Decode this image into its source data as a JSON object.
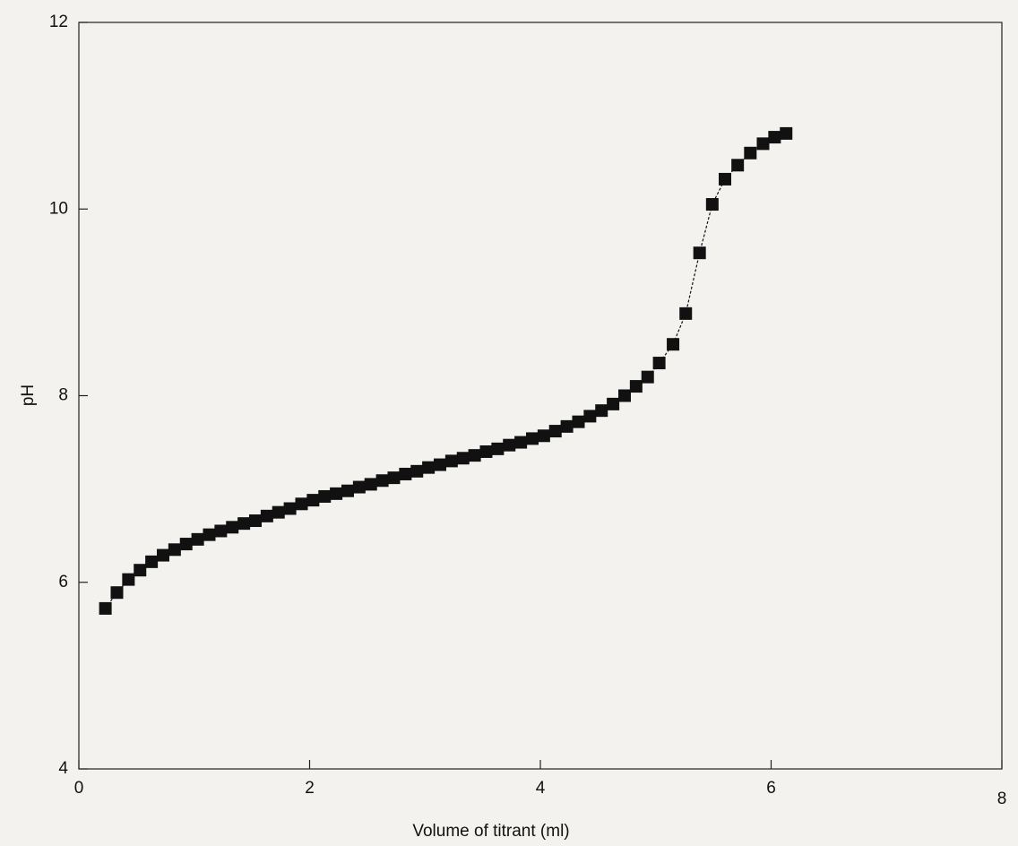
{
  "chart_data": {
    "type": "line",
    "marker": "square",
    "color": "#111111",
    "xlabel": "Volume of titrant (ml)",
    "ylabel": "pH",
    "x": [
      0.23,
      0.33,
      0.43,
      0.53,
      0.63,
      0.73,
      0.83,
      0.93,
      1.03,
      1.13,
      1.23,
      1.33,
      1.43,
      1.53,
      1.63,
      1.73,
      1.83,
      1.93,
      2.03,
      2.13,
      2.23,
      2.33,
      2.43,
      2.53,
      2.63,
      2.73,
      2.83,
      2.93,
      3.03,
      3.13,
      3.23,
      3.33,
      3.43,
      3.53,
      3.63,
      3.73,
      3.83,
      3.93,
      4.03,
      4.13,
      4.23,
      4.33,
      4.43,
      4.53,
      4.63,
      4.73,
      4.83,
      4.93,
      5.03,
      5.15,
      5.26,
      5.38,
      5.49,
      5.6,
      5.71,
      5.82,
      5.93,
      6.03,
      6.13
    ],
    "values": [
      5.72,
      5.89,
      6.03,
      6.13,
      6.22,
      6.29,
      6.35,
      6.41,
      6.46,
      6.51,
      6.55,
      6.59,
      6.63,
      6.66,
      6.71,
      6.75,
      6.79,
      6.84,
      6.88,
      6.92,
      6.95,
      6.98,
      7.02,
      7.05,
      7.09,
      7.12,
      7.16,
      7.19,
      7.23,
      7.26,
      7.3,
      7.33,
      7.36,
      7.4,
      7.43,
      7.47,
      7.5,
      7.54,
      7.57,
      7.62,
      7.67,
      7.72,
      7.78,
      7.84,
      7.91,
      8.0,
      8.1,
      8.2,
      8.35,
      8.55,
      8.88,
      9.53,
      10.05,
      10.32,
      10.47,
      10.6,
      10.7,
      10.77,
      10.81
    ],
    "xlim": [
      0,
      8
    ],
    "xticks": [
      0,
      2,
      4,
      6,
      8
    ],
    "ylim": [
      4,
      12
    ],
    "yticks": [
      4,
      6,
      8,
      10,
      12
    ]
  }
}
